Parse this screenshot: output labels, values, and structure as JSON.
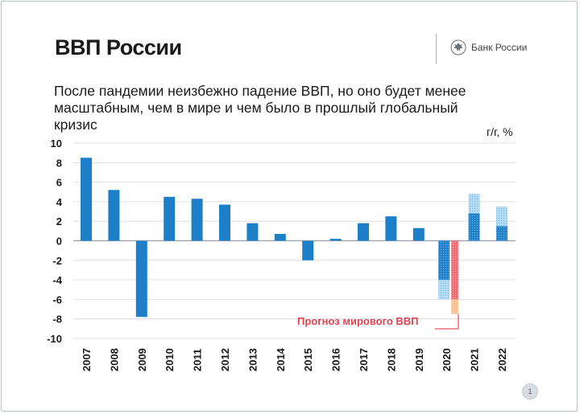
{
  "slide": {
    "title": "ВВП России",
    "logo_text": "Банк России",
    "subtitle": "После пандемии неизбежно падение ВВП, но оно будет менее масштабным, чем в мире и чем было в прошлый глобальный кризис",
    "page_number": "1"
  },
  "chart_data": {
    "type": "bar",
    "title": "",
    "xlabel": "",
    "ylabel": "",
    "unit": "г/г, %",
    "ylim": [
      -10,
      10
    ],
    "yticks": [
      10,
      8,
      6,
      4,
      2,
      0,
      -2,
      -4,
      -6,
      -8,
      -10
    ],
    "grid": true,
    "categories": [
      "2007",
      "2008",
      "2009",
      "2010",
      "2011",
      "2012",
      "2013",
      "2014",
      "2015",
      "2016",
      "2017",
      "2018",
      "2019",
      "2020",
      "2021",
      "2022"
    ],
    "series": [
      {
        "values": [
          8.5,
          5.2,
          -7.8,
          4.5,
          4.3,
          3.7,
          1.8,
          0.7,
          -2.0,
          0.2,
          1.8,
          2.5,
          1.3,
          null,
          null,
          null
        ]
      }
    ],
    "forecast_ranges": [
      {
        "category": "2020",
        "from": -4.0,
        "to": -6.0,
        "solid_to": -4.0
      },
      {
        "category": "2021",
        "from": 2.8,
        "to": 4.8,
        "solid_to": 2.8
      },
      {
        "category": "2022",
        "from": 1.5,
        "to": 3.5,
        "solid_to": 1.5
      }
    ],
    "world_forecast": {
      "label": "Прогноз мирового ВВП",
      "category": "2020",
      "from": 0,
      "to": -7.5,
      "color": "#e8585e",
      "tail_color": "#f2b27a"
    },
    "colors": {
      "bar": "#1e7fc9",
      "forecast_light": "#9fd0f0",
      "grid": "#d6d9dd",
      "label": "#e04450"
    }
  }
}
